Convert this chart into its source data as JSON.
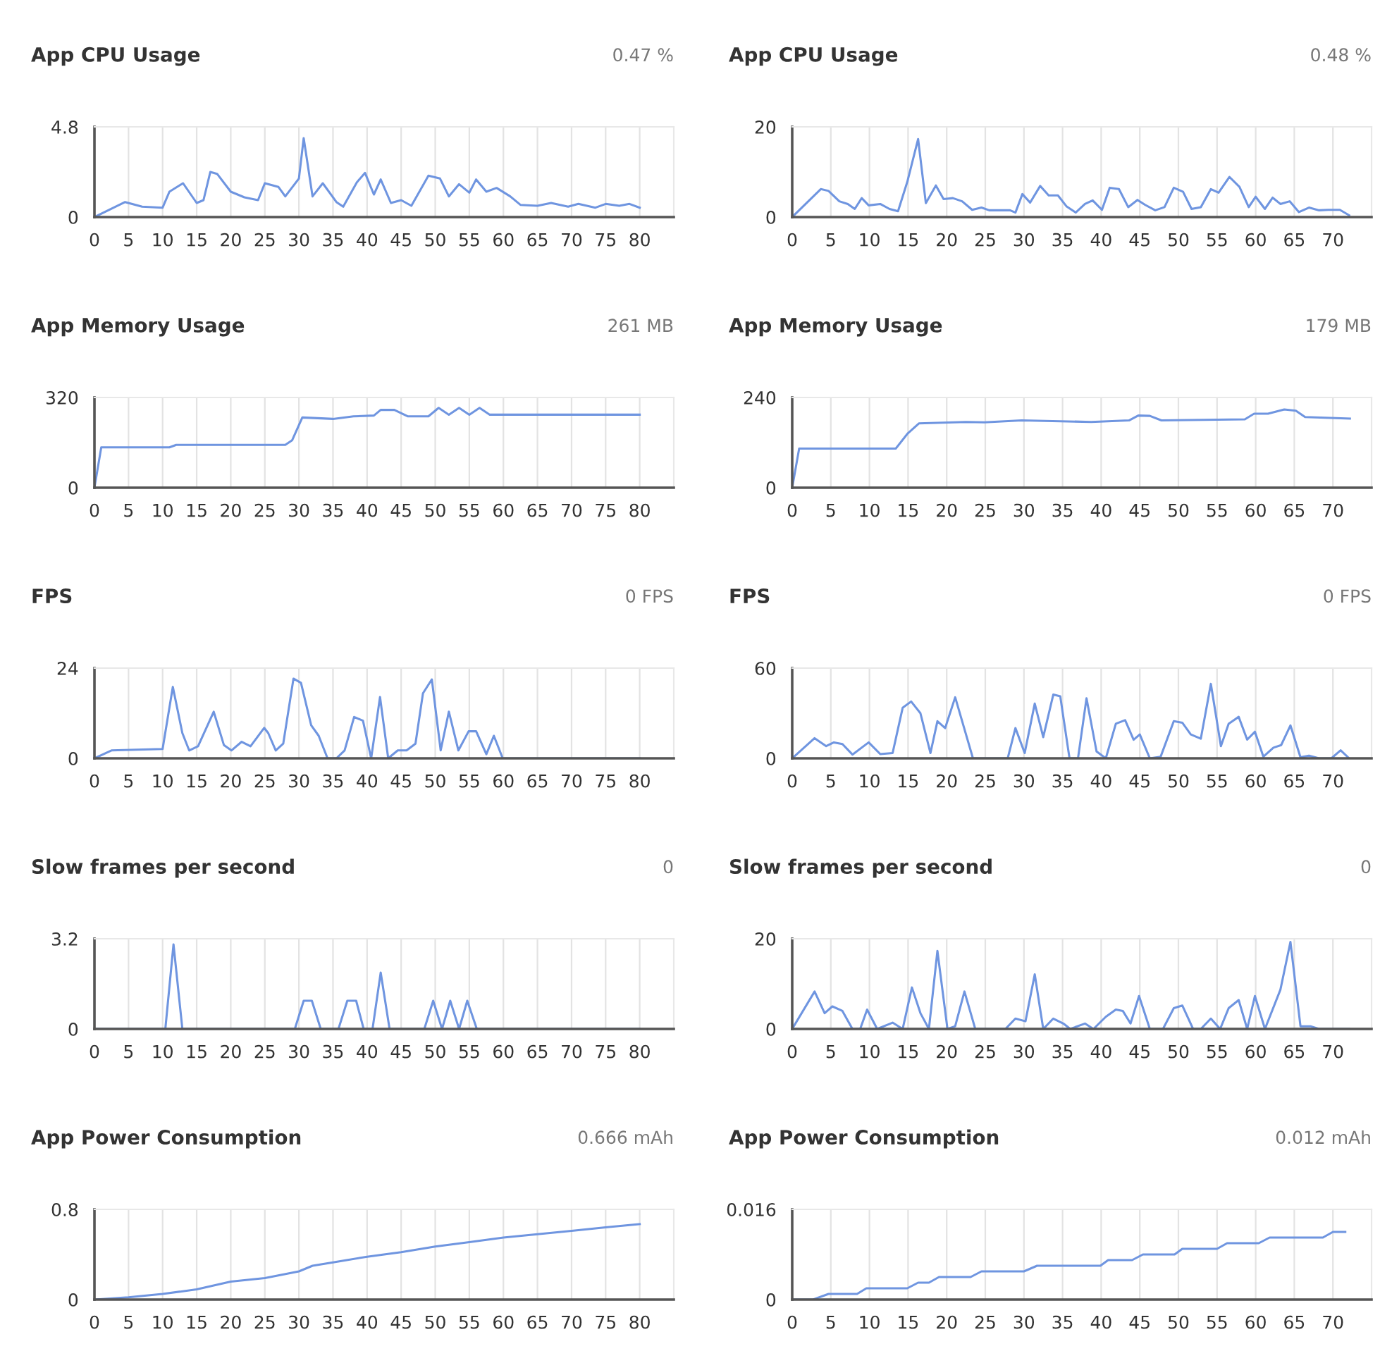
{
  "chart_data": [
    {
      "type": "line",
      "title": "App CPU Usage",
      "subtitle": "0.47 %",
      "color": "#6f95e0",
      "grid": "x",
      "xlim": [
        0,
        85
      ],
      "xticks": [
        0,
        5,
        10,
        15,
        20,
        25,
        30,
        35,
        40,
        45,
        50,
        55,
        60,
        65,
        70,
        75,
        80
      ],
      "ylim": [
        0,
        4.8
      ],
      "yticks": [
        0,
        4.8
      ],
      "x": [
        0,
        4.5,
        7,
        10,
        11,
        13,
        15,
        16,
        17,
        18,
        20,
        22,
        24,
        25,
        27,
        28,
        30,
        30.7,
        32,
        33.5,
        35.5,
        36.5,
        38.5,
        39.7,
        41,
        42,
        43.5,
        45,
        46.5,
        49,
        50.7,
        52,
        53.5,
        55,
        56,
        57.5,
        59,
        61,
        62.5,
        65,
        67,
        69.5,
        71,
        73.5,
        75,
        77,
        78.5,
        80
      ],
      "values": [
        0,
        0.8,
        0.55,
        0.5,
        1.35,
        1.8,
        0.75,
        0.9,
        2.4,
        2.3,
        1.35,
        1.05,
        0.9,
        1.8,
        1.6,
        1.1,
        2.05,
        4.2,
        1.1,
        1.8,
        0.8,
        0.55,
        1.85,
        2.35,
        1.2,
        2.0,
        0.75,
        0.9,
        0.6,
        2.2,
        2.05,
        1.1,
        1.75,
        1.3,
        2.0,
        1.35,
        1.55,
        1.1,
        0.65,
        0.6,
        0.75,
        0.55,
        0.7,
        0.5,
        0.7,
        0.6,
        0.7,
        0.5
      ]
    },
    {
      "type": "line",
      "title": "App CPU Usage",
      "subtitle": "0.48 %",
      "color": "#6f95e0",
      "grid": "x",
      "xlim": [
        0,
        75
      ],
      "xticks": [
        0,
        5,
        10,
        15,
        20,
        25,
        30,
        35,
        40,
        45,
        50,
        55,
        60,
        65,
        70
      ],
      "ylim": [
        0,
        20
      ],
      "yticks": [
        0,
        20
      ],
      "x": [
        0,
        3.7,
        4.7,
        6.1,
        7.2,
        8.1,
        9,
        9.9,
        11.4,
        12.6,
        13.7,
        14.9,
        16.3,
        17.3,
        18.6,
        19.6,
        20.8,
        22,
        23.3,
        24.5,
        25.5,
        27,
        28.2,
        28.9,
        29.8,
        30.8,
        32.1,
        33.2,
        34.4,
        35.5,
        36.7,
        37.9,
        38.9,
        40.1,
        41.1,
        42.3,
        43.5,
        44.7,
        45.7,
        47,
        48.2,
        49.4,
        50.6,
        51.7,
        52.9,
        54.2,
        55.2,
        56.6,
        57.9,
        59.1,
        60,
        61.2,
        62.2,
        63.2,
        64.4,
        65.6,
        66.9,
        68.2,
        69.4,
        70.9,
        72.1
      ],
      "values": [
        0,
        6.2,
        5.8,
        3.5,
        2.9,
        1.8,
        4.2,
        2.6,
        2.9,
        1.8,
        1.3,
        7.8,
        17.3,
        3.1,
        7.0,
        4.0,
        4.2,
        3.5,
        1.6,
        2.1,
        1.5,
        1.5,
        1.5,
        1.0,
        5.1,
        3.2,
        6.9,
        4.8,
        4.8,
        2.4,
        1.0,
        2.9,
        3.7,
        1.6,
        6.5,
        6.2,
        2.2,
        3.8,
        2.7,
        1.5,
        2.2,
        6.5,
        5.6,
        1.8,
        2.2,
        6.2,
        5.4,
        8.9,
        6.7,
        2.2,
        4.5,
        1.8,
        4.3,
        2.9,
        3.5,
        1.1,
        2.1,
        1.5,
        1.6,
        1.6,
        0.4
      ]
    },
    {
      "type": "line",
      "title": "App Memory Usage",
      "subtitle": "261 MB",
      "color": "#6f95e0",
      "grid": "x",
      "xlim": [
        0,
        85
      ],
      "xticks": [
        0,
        5,
        10,
        15,
        20,
        25,
        30,
        35,
        40,
        45,
        50,
        55,
        60,
        65,
        70,
        75,
        80
      ],
      "ylim": [
        0,
        320
      ],
      "yticks": [
        0,
        320
      ],
      "x": [
        0,
        1,
        11,
        12,
        28,
        29,
        30.5,
        35,
        38,
        41,
        42,
        44,
        46,
        49,
        50.5,
        52,
        53.5,
        55,
        56.5,
        58,
        80
      ],
      "values": [
        0,
        143,
        143,
        152,
        152,
        168,
        249,
        244,
        253,
        256,
        276,
        276,
        253,
        253,
        283,
        259,
        283,
        259,
        283,
        259,
        259
      ]
    },
    {
      "type": "line",
      "title": "App Memory Usage",
      "subtitle": "179 MB",
      "color": "#6f95e0",
      "grid": "x",
      "xlim": [
        0,
        75
      ],
      "xticks": [
        0,
        5,
        10,
        15,
        20,
        25,
        30,
        35,
        40,
        45,
        50,
        55,
        60,
        65,
        70
      ],
      "ylim": [
        0,
        240
      ],
      "yticks": [
        0,
        240
      ],
      "x": [
        0,
        0.9,
        13.4,
        14.9,
        16.4,
        22.5,
        24.9,
        29.7,
        38.7,
        43.6,
        44.8,
        46.3,
        47.8,
        58.6,
        59.8,
        61.6,
        63.7,
        65.2,
        66.4,
        72.2
      ],
      "values": [
        0,
        104,
        104,
        143,
        171,
        175,
        174,
        179,
        175,
        179,
        192,
        191,
        179,
        182,
        197,
        197,
        208,
        205,
        188,
        184
      ]
    },
    {
      "type": "line",
      "title": "FPS",
      "subtitle": "0 FPS",
      "color": "#6f95e0",
      "grid": "x",
      "xlim": [
        0,
        85
      ],
      "xticks": [
        0,
        5,
        10,
        15,
        20,
        25,
        30,
        35,
        40,
        45,
        50,
        55,
        60,
        65,
        70,
        75,
        80
      ],
      "ylim": [
        0,
        24
      ],
      "yticks": [
        0,
        24
      ],
      "x": [
        0,
        2.5,
        10,
        11.5,
        12.9,
        13.9,
        15.2,
        17.5,
        19,
        20.1,
        21.6,
        22.9,
        24.9,
        25.5,
        26.6,
        27.7,
        29.2,
        30.3,
        31.8,
        32.9,
        34.2,
        35.5,
        36.7,
        38.1,
        39.4,
        40.6,
        41.9,
        43.1,
        44.5,
        45.8,
        47.1,
        48.2,
        49.5,
        50.8,
        52,
        53.4,
        54.9,
        56,
        57.5,
        58.6,
        59.9,
        80
      ],
      "values": [
        0,
        2.1,
        2.5,
        19,
        6.7,
        2.1,
        3.2,
        12.4,
        3.5,
        2.1,
        4.4,
        3.2,
        8.1,
        6.7,
        2.1,
        3.9,
        21.2,
        20.1,
        8.8,
        6,
        0,
        0,
        2.1,
        11,
        10,
        0,
        16.3,
        0,
        2.1,
        2.1,
        3.9,
        17.3,
        21,
        2.1,
        12.4,
        2.1,
        7.2,
        7.2,
        1.1,
        6,
        0,
        0
      ]
    },
    {
      "type": "line",
      "title": "FPS",
      "subtitle": "0 FPS",
      "color": "#6f95e0",
      "grid": "x",
      "xlim": [
        0,
        75
      ],
      "xticks": [
        0,
        5,
        10,
        15,
        20,
        25,
        30,
        35,
        40,
        45,
        50,
        55,
        60,
        65,
        70
      ],
      "ylim": [
        0,
        60
      ],
      "yticks": [
        0,
        60
      ],
      "x": [
        0,
        2.9,
        4.4,
        5.4,
        6.5,
        7.8,
        9.9,
        11.4,
        13,
        14.3,
        15.4,
        16.6,
        17.9,
        18.8,
        19.8,
        21.1,
        23.4,
        27.9,
        28.9,
        30.1,
        31.4,
        32.5,
        33.8,
        34.7,
        35.9,
        37,
        38.1,
        39.4,
        40.6,
        41.9,
        43.1,
        44.2,
        45,
        46.3,
        47.7,
        49.4,
        50.5,
        51.6,
        52.9,
        54.2,
        55.5,
        56.5,
        57.8,
        58.9,
        59.9,
        61,
        62.3,
        63.3,
        64.5,
        65.8,
        66.9,
        68.2,
        69.8,
        71,
        72.1
      ],
      "values": [
        0,
        13.4,
        8.1,
        10.6,
        9.5,
        2.5,
        10.6,
        2.8,
        3.5,
        33.6,
        37.8,
        30,
        3.5,
        24.7,
        20.1,
        40.6,
        0,
        0,
        20.1,
        3.5,
        36.4,
        14.1,
        42.4,
        41.3,
        0,
        0,
        39.9,
        4.6,
        0,
        23,
        25.4,
        12.4,
        15.9,
        0,
        1.1,
        24.7,
        23.7,
        15.9,
        13.1,
        49.5,
        8.1,
        23,
        27.6,
        12.4,
        17.7,
        1.1,
        7.1,
        8.8,
        21.9,
        0.7,
        1.8,
        0,
        0,
        5.3,
        0
      ]
    },
    {
      "type": "line",
      "title": "Slow frames per second",
      "subtitle": "0",
      "color": "#6f95e0",
      "grid": "x",
      "xlim": [
        0,
        85
      ],
      "xticks": [
        0,
        5,
        10,
        15,
        20,
        25,
        30,
        35,
        40,
        45,
        50,
        55,
        60,
        65,
        70,
        75,
        80
      ],
      "ylim": [
        0,
        3.2
      ],
      "yticks": [
        0,
        3.2
      ],
      "x": [
        0,
        10.4,
        11.6,
        12.9,
        29.4,
        30.7,
        31.9,
        33.2,
        35.8,
        37.1,
        38.4,
        39.5,
        40.8,
        42,
        43.3,
        48.4,
        49.7,
        51,
        52.2,
        53.5,
        54.7,
        56.1,
        80
      ],
      "values": [
        0,
        0,
        3.0,
        0,
        0,
        1,
        1,
        0,
        0,
        1,
        1,
        0,
        0,
        2.0,
        0,
        0,
        1,
        0,
        1,
        0,
        1,
        0,
        0
      ]
    },
    {
      "type": "line",
      "title": "Slow frames per second",
      "subtitle": "0",
      "color": "#6f95e0",
      "grid": "x",
      "xlim": [
        0,
        75
      ],
      "xticks": [
        0,
        5,
        10,
        15,
        20,
        25,
        30,
        35,
        40,
        45,
        50,
        55,
        60,
        65,
        70
      ],
      "ylim": [
        0,
        20
      ],
      "yticks": [
        0,
        20
      ],
      "x": [
        0,
        2.9,
        4.2,
        5.2,
        6.5,
        7.8,
        8.8,
        9.7,
        11,
        13,
        14.3,
        15.5,
        16.6,
        17.7,
        18.8,
        20.1,
        21.1,
        22.3,
        23.7,
        27.6,
        28.9,
        30.2,
        31.4,
        32.5,
        33.8,
        35.1,
        36,
        37.9,
        39,
        40.6,
        41.9,
        42.8,
        43.8,
        44.9,
        46.3,
        48,
        49.4,
        50.5,
        51.9,
        52.9,
        54.2,
        55.4,
        56.5,
        57.8,
        58.9,
        59.9,
        61.2,
        63.2,
        64.5,
        65.8,
        67.1,
        68.2,
        72.1
      ],
      "values": [
        0,
        8.3,
        3.5,
        5,
        4,
        0,
        0,
        4.3,
        0,
        1.4,
        0,
        9.2,
        3.5,
        0,
        17.3,
        0,
        0.6,
        8.3,
        0,
        0,
        2.3,
        1.7,
        12.1,
        0,
        2.3,
        1.2,
        0,
        1.2,
        0,
        2.7,
        4.3,
        4,
        1.2,
        7.3,
        0,
        0,
        4.6,
        5.2,
        0,
        0,
        2.3,
        0,
        4.6,
        6.4,
        0,
        7.3,
        0,
        8.7,
        19.3,
        0.6,
        0.6,
        0,
        0
      ]
    },
    {
      "type": "line",
      "title": "App Power Consumption",
      "subtitle": "0.666 mAh",
      "color": "#6f95e0",
      "grid": "x",
      "xlim": [
        0,
        85
      ],
      "xticks": [
        0,
        5,
        10,
        15,
        20,
        25,
        30,
        35,
        40,
        45,
        50,
        55,
        60,
        65,
        70,
        75,
        80
      ],
      "ylim": [
        0,
        0.8
      ],
      "yticks": [
        0,
        0.8
      ],
      "x": [
        0,
        5,
        10,
        15,
        20,
        25,
        30,
        32,
        35,
        40,
        45,
        50,
        55,
        60,
        65,
        70,
        75,
        80
      ],
      "values": [
        0,
        0.02,
        0.05,
        0.09,
        0.16,
        0.19,
        0.25,
        0.3,
        0.33,
        0.38,
        0.42,
        0.47,
        0.51,
        0.55,
        0.58,
        0.61,
        0.64,
        0.67
      ]
    },
    {
      "type": "line",
      "title": "App Power Consumption",
      "subtitle": "0.012 mAh",
      "color": "#6f95e0",
      "grid": "x",
      "xlim": [
        0,
        75
      ],
      "xticks": [
        0,
        5,
        10,
        15,
        20,
        25,
        30,
        35,
        40,
        45,
        50,
        55,
        60,
        65,
        70
      ],
      "ylim": [
        0,
        0.016
      ],
      "yticks": [
        0,
        0.016
      ],
      "x": [
        0,
        2.7,
        4.7,
        8.4,
        9.6,
        14.9,
        16.3,
        17.7,
        19,
        23.1,
        24.5,
        30,
        31.7,
        39.9,
        40.9,
        44,
        45.4,
        49.5,
        50.5,
        55,
        56.3,
        60.4,
        61.8,
        68.7,
        70,
        71.6
      ],
      "values": [
        0,
        0,
        0.001,
        0.001,
        0.002,
        0.002,
        0.003,
        0.003,
        0.004,
        0.004,
        0.005,
        0.005,
        0.006,
        0.006,
        0.007,
        0.007,
        0.008,
        0.008,
        0.009,
        0.009,
        0.01,
        0.01,
        0.011,
        0.011,
        0.012,
        0.012
      ]
    }
  ]
}
